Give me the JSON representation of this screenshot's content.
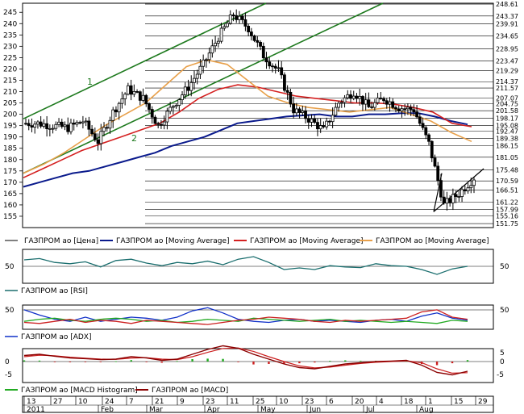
{
  "colors": {
    "candle": "#000000",
    "ma_blue": "#0a1a8c",
    "ma_red": "#d42020",
    "ma_orange": "#e8a04a",
    "channel": "#1e7a1e",
    "rsi": "#1a6e6e",
    "adx": "#1030c8",
    "macd_line": "#8b0000",
    "macd_signal": "#cc2020",
    "hist_pos": "#22aa22",
    "hist_neg": "#cc2020",
    "grid": "#000000"
  },
  "chart_data": [
    {
      "type": "candlestick",
      "name": "main-price",
      "ylim": [
        150,
        249
      ],
      "left_ticks": [
        155,
        160,
        165,
        170,
        175,
        180,
        185,
        190,
        195,
        200,
        205,
        210,
        215,
        220,
        225,
        230,
        235,
        240,
        245
      ],
      "right_labels": [
        "248.61",
        "243.37",
        "239.91",
        "234.65",
        "228.95",
        "223.47",
        "219.29",
        "214.37",
        "211.57",
        "207.07",
        "204.75",
        "201.58",
        "198.17",
        "195.08",
        "192.47",
        "189.38",
        "186.15",
        "181.05",
        "175.48",
        "170.59",
        "166.51",
        "161.22",
        "157.99",
        "155.16",
        "151.75"
      ],
      "channel_labels": [
        "1",
        "2"
      ],
      "weekly_closes": [
        196,
        195,
        194,
        197,
        188,
        201,
        211,
        207,
        195,
        204,
        212,
        222,
        234,
        244,
        238,
        226,
        219,
        202,
        198,
        193,
        205,
        210,
        203,
        207,
        203,
        202,
        187,
        160,
        165,
        172
      ],
      "ma_blue": [
        168,
        170,
        172,
        174,
        175,
        177,
        179,
        181,
        183,
        186,
        188,
        190,
        193,
        196,
        197,
        198,
        199,
        199.5,
        200,
        199,
        199,
        200,
        200,
        200.5,
        200.5,
        199,
        197,
        195.5
      ],
      "ma_red": [
        172,
        176,
        180,
        184,
        187,
        190,
        193,
        196,
        201,
        207,
        211,
        213,
        212,
        210,
        208,
        207,
        206,
        205,
        205,
        204.5,
        203,
        201,
        196,
        194.5
      ],
      "ma_orange": [
        174,
        178,
        183,
        189,
        195,
        200,
        205,
        213,
        221,
        224,
        222,
        215,
        208,
        205,
        203,
        202,
        201,
        202,
        203,
        200,
        197,
        192,
        188
      ],
      "legend": [
        "ГАЗПРОМ ао [Цена]",
        "ГАЗПРОМ ао [Moving Average]",
        "ГАЗПРОМ ао [Moving Average]",
        "ГАЗПРОМ ао [Moving Average]"
      ]
    },
    {
      "type": "line",
      "name": "rsi",
      "tick_label": "50",
      "legend": "ГАЗПРОМ ао [RSI]",
      "series": [
        {
          "values": [
            0.7,
            0.74,
            0.62,
            0.58,
            0.64,
            0.48,
            0.68,
            0.72,
            0.6,
            0.52,
            0.62,
            0.58,
            0.66,
            0.55,
            0.72,
            0.8,
            0.62,
            0.4,
            0.45,
            0.4,
            0.52,
            0.48,
            0.46,
            0.58,
            0.52,
            0.5,
            0.4,
            0.25,
            0.42,
            0.5
          ]
        }
      ]
    },
    {
      "type": "line",
      "name": "adx",
      "tick_label": "50",
      "legend": "ГАЗПРОМ ао [ADX]",
      "series": [
        {
          "color_key": "adx",
          "values": [
            0.85,
            0.6,
            0.4,
            0.3,
            0.5,
            0.3,
            0.4,
            0.5,
            0.45,
            0.35,
            0.5,
            0.8,
            0.95,
            0.7,
            0.4,
            0.3,
            0.25,
            0.35,
            0.4,
            0.3,
            0.35,
            0.3,
            0.25,
            0.35,
            0.4,
            0.3,
            0.55,
            0.7,
            0.45,
            0.35
          ]
        },
        {
          "color_key": "hist_pos",
          "values": [
            0.3,
            0.4,
            0.45,
            0.35,
            0.3,
            0.4,
            0.45,
            0.4,
            0.3,
            0.35,
            0.25,
            0.3,
            0.4,
            0.35,
            0.3,
            0.45,
            0.4,
            0.35,
            0.3,
            0.35,
            0.4,
            0.3,
            0.35,
            0.3,
            0.25,
            0.3,
            0.25,
            0.2,
            0.35,
            0.3
          ]
        },
        {
          "color_key": "macd_signal",
          "values": [
            0.25,
            0.2,
            0.3,
            0.4,
            0.25,
            0.35,
            0.3,
            0.2,
            0.35,
            0.3,
            0.25,
            0.2,
            0.15,
            0.25,
            0.35,
            0.4,
            0.5,
            0.45,
            0.4,
            0.3,
            0.25,
            0.35,
            0.3,
            0.35,
            0.4,
            0.45,
            0.75,
            0.85,
            0.5,
            0.4
          ]
        }
      ]
    },
    {
      "type": "bar_line",
      "name": "macd",
      "tick_labels": [
        "5",
        "0",
        "-5"
      ],
      "legend": [
        "ГАЗПРОМ ао [MACD Histogram]",
        "ГАЗПРОМ ао [MACD]"
      ],
      "macd": [
        2.5,
        3.0,
        2.2,
        1.5,
        1.2,
        0.8,
        1.0,
        2.0,
        1.5,
        0.5,
        1.0,
        3.0,
        5.0,
        6.5,
        5.5,
        3.0,
        1.0,
        -1.0,
        -2.5,
        -3.0,
        -2.0,
        -1.0,
        -0.5,
        0.0,
        0.2,
        0.5,
        -1.5,
        -4.5,
        -5.5,
        -4.0
      ],
      "signal": [
        2.0,
        2.6,
        2.4,
        1.8,
        1.4,
        1.0,
        0.9,
        1.4,
        1.6,
        1.0,
        0.8,
        2.0,
        3.8,
        5.4,
        5.6,
        4.2,
        2.0,
        0.0,
        -1.8,
        -2.6,
        -2.3,
        -1.5,
        -0.8,
        -0.3,
        0.0,
        0.3,
        -0.5,
        -3.0,
        -4.8,
        -4.6
      ],
      "histogram": [
        0.5,
        0.4,
        -0.2,
        -0.3,
        -0.2,
        -0.2,
        0.1,
        0.6,
        -0.1,
        -0.5,
        0.2,
        1.0,
        1.2,
        1.1,
        -0.1,
        -1.2,
        -1.0,
        -1.0,
        -0.7,
        -0.4,
        0.3,
        0.5,
        0.3,
        0.3,
        0.2,
        0.2,
        -1.0,
        -1.5,
        -0.7,
        0.6
      ]
    }
  ],
  "x_axis": {
    "day_ticks": [
      "13",
      "27",
      "10",
      "24",
      "7",
      "21",
      "9",
      "23",
      "11",
      "25",
      "10",
      "23",
      "6",
      "20",
      "4",
      "18",
      "1",
      "15",
      "29"
    ],
    "months": [
      "2011",
      "Feb",
      "Mar",
      "Apr",
      "May",
      "Jun",
      "Jul",
      "Aug"
    ]
  }
}
